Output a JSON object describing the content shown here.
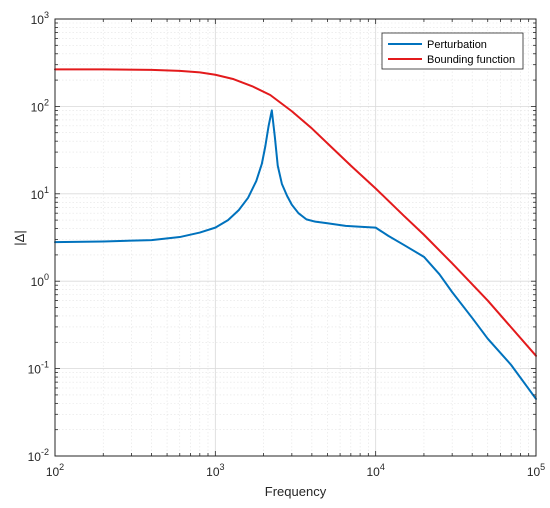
{
  "chart_data": {
    "type": "line",
    "xlabel": "Frequency",
    "ylabel": "|Δ|",
    "xscale": "log",
    "yscale": "log",
    "xlim": [
      100,
      100000
    ],
    "ylim": [
      0.01,
      1000
    ],
    "grid": true,
    "minor_grid": true,
    "legend_position": "top-right",
    "x_ticks": [
      {
        "value": 100,
        "base": "10",
        "exp": "2"
      },
      {
        "value": 1000,
        "base": "10",
        "exp": "3"
      },
      {
        "value": 10000,
        "base": "10",
        "exp": "4"
      },
      {
        "value": 100000,
        "base": "10",
        "exp": "5"
      }
    ],
    "y_ticks": [
      {
        "value": 0.01,
        "base": "10",
        "exp": "-2"
      },
      {
        "value": 0.1,
        "base": "10",
        "exp": "-1"
      },
      {
        "value": 1,
        "base": "10",
        "exp": "0"
      },
      {
        "value": 10,
        "base": "10",
        "exp": "1"
      },
      {
        "value": 100,
        "base": "10",
        "exp": "2"
      },
      {
        "value": 1000,
        "base": "10",
        "exp": "3"
      }
    ],
    "series": [
      {
        "name": "Perturbation",
        "color": "#0072BD",
        "x": [
          100,
          200,
          400,
          600,
          800,
          1000,
          1200,
          1400,
          1600,
          1800,
          1950,
          2050,
          2150,
          2250,
          2350,
          2450,
          2600,
          2800,
          3000,
          3300,
          3700,
          4200,
          5000,
          6500,
          8000,
          10000,
          12000,
          15000,
          20000,
          25000,
          30000,
          40000,
          50000,
          70000,
          100000
        ],
        "y": [
          2.8,
          2.85,
          2.95,
          3.2,
          3.6,
          4.1,
          5.0,
          6.5,
          9.0,
          14,
          22,
          35,
          60,
          90,
          45,
          21,
          13,
          9.5,
          7.5,
          6.0,
          5.1,
          4.8,
          4.6,
          4.3,
          4.2,
          4.1,
          3.3,
          2.6,
          1.9,
          1.2,
          0.75,
          0.38,
          0.22,
          0.11,
          0.045
        ]
      },
      {
        "name": "Bounding function",
        "color": "#E31A1C",
        "x": [
          100,
          200,
          400,
          600,
          800,
          1000,
          1300,
          1700,
          2200,
          3000,
          4000,
          5500,
          7000,
          10000,
          15000,
          20000,
          30000,
          50000,
          100000
        ],
        "y": [
          265,
          265,
          262,
          255,
          245,
          230,
          205,
          170,
          135,
          88,
          56,
          32,
          21,
          11.5,
          5.6,
          3.4,
          1.6,
          0.6,
          0.14
        ]
      }
    ]
  }
}
